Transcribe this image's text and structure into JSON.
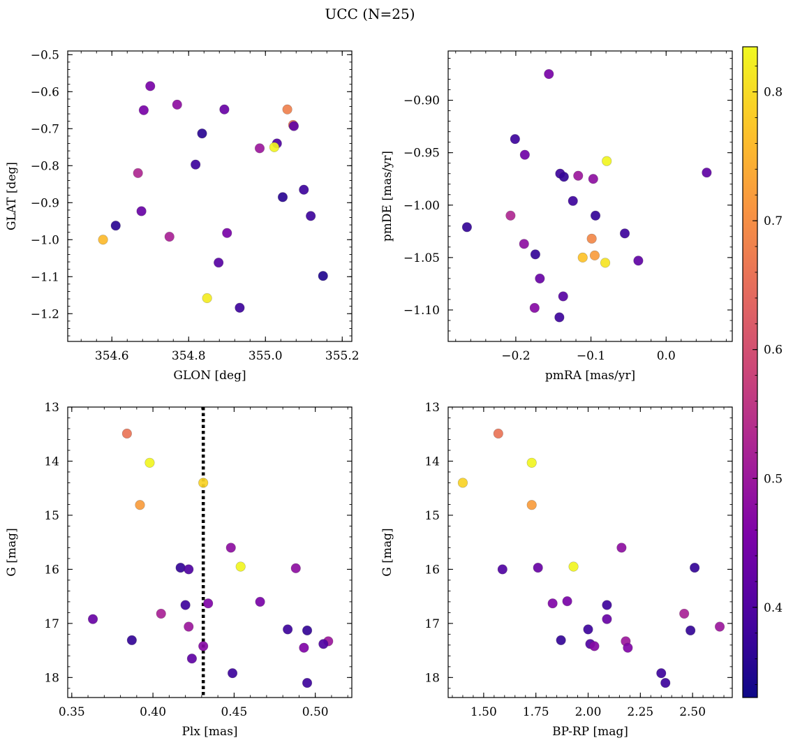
{
  "figure": {
    "title": "UCC (N=25)"
  },
  "colorbar": {
    "cmap": "plasma",
    "range": [
      0.33,
      0.835
    ],
    "ticks": [
      0.4,
      0.5,
      0.6,
      0.7,
      0.8
    ],
    "tick_labels": [
      "0.4",
      "0.5",
      "0.6",
      "0.7",
      "0.8"
    ]
  },
  "chart_data": [
    {
      "type": "scatter",
      "title": "",
      "xlabel": "GLON [deg]",
      "ylabel": "GLAT [deg]",
      "xlim": [
        354.485,
        355.225
      ],
      "ylim": [
        -1.275,
        -0.49
      ],
      "y_inverted": false,
      "xticks": [
        354.6,
        354.8,
        355.0,
        355.2
      ],
      "xtick_labels": [
        "354.6",
        "354.8",
        "355.0",
        "355.2"
      ],
      "yticks": [
        -1.2,
        -1.1,
        -1.0,
        -0.9,
        -0.8,
        -0.7,
        -0.6,
        -0.5
      ],
      "ytick_labels": [
        "−1.2",
        "−1.1",
        "−1.0",
        "−0.9",
        "−0.8",
        "−0.7",
        "−0.6",
        "−0.5"
      ],
      "vline": null,
      "points": [
        {
          "x": 354.7,
          "y": -0.585,
          "c": 0.45
        },
        {
          "x": 354.683,
          "y": -0.65,
          "c": 0.45
        },
        {
          "x": 354.77,
          "y": -0.635,
          "c": 0.48
        },
        {
          "x": 354.893,
          "y": -0.648,
          "c": 0.43
        },
        {
          "x": 355.057,
          "y": -0.648,
          "c": 0.68
        },
        {
          "x": 354.835,
          "y": -0.713,
          "c": 0.36
        },
        {
          "x": 355.072,
          "y": -0.69,
          "c": 0.66
        },
        {
          "x": 355.074,
          "y": -0.693,
          "c": 0.42
        },
        {
          "x": 355.03,
          "y": -0.74,
          "c": 0.4
        },
        {
          "x": 354.985,
          "y": -0.753,
          "c": 0.5
        },
        {
          "x": 355.023,
          "y": -0.75,
          "c": 0.83
        },
        {
          "x": 354.818,
          "y": -0.797,
          "c": 0.38
        },
        {
          "x": 354.668,
          "y": -0.82,
          "c": 0.53
        },
        {
          "x": 355.1,
          "y": -0.865,
          "c": 0.38
        },
        {
          "x": 355.045,
          "y": -0.885,
          "c": 0.36
        },
        {
          "x": 354.677,
          "y": -0.923,
          "c": 0.43
        },
        {
          "x": 355.118,
          "y": -0.936,
          "c": 0.38
        },
        {
          "x": 354.61,
          "y": -0.962,
          "c": 0.36
        },
        {
          "x": 354.9,
          "y": -0.982,
          "c": 0.45
        },
        {
          "x": 354.75,
          "y": -0.992,
          "c": 0.52
        },
        {
          "x": 354.577,
          "y": -1.0,
          "c": 0.76
        },
        {
          "x": 354.878,
          "y": -1.062,
          "c": 0.41
        },
        {
          "x": 355.15,
          "y": -1.098,
          "c": 0.35
        },
        {
          "x": 354.848,
          "y": -1.158,
          "c": 0.82
        },
        {
          "x": 354.933,
          "y": -1.184,
          "c": 0.38
        }
      ]
    },
    {
      "type": "scatter",
      "title": "",
      "xlabel": "pmRA [mas/yr]",
      "ylabel": "pmDE [mas/yr]",
      "xlim": [
        -0.29,
        0.088
      ],
      "ylim": [
        -1.13,
        -0.853
      ],
      "y_inverted": false,
      "xticks": [
        -0.2,
        -0.1,
        0.0
      ],
      "xtick_labels": [
        "−0.2",
        "−0.1",
        "0.0"
      ],
      "yticks": [
        -1.1,
        -1.05,
        -1.0,
        -0.95,
        -0.9
      ],
      "ytick_labels": [
        "−1.10",
        "−1.05",
        "−1.00",
        "−0.95",
        "−0.90"
      ],
      "vline": null,
      "points": [
        {
          "x": -0.156,
          "y": -0.875,
          "c": 0.45
        },
        {
          "x": -0.201,
          "y": -0.937,
          "c": 0.38
        },
        {
          "x": -0.188,
          "y": -0.952,
          "c": 0.44
        },
        {
          "x": -0.079,
          "y": -0.958,
          "c": 0.83
        },
        {
          "x": 0.054,
          "y": -0.969,
          "c": 0.42
        },
        {
          "x": -0.141,
          "y": -0.97,
          "c": 0.38
        },
        {
          "x": -0.136,
          "y": -0.973,
          "c": 0.37
        },
        {
          "x": -0.117,
          "y": -0.972,
          "c": 0.5
        },
        {
          "x": -0.097,
          "y": -0.975,
          "c": 0.48
        },
        {
          "x": -0.124,
          "y": -0.996,
          "c": 0.38
        },
        {
          "x": -0.094,
          "y": -1.01,
          "c": 0.37
        },
        {
          "x": -0.207,
          "y": -1.01,
          "c": 0.53
        },
        {
          "x": -0.265,
          "y": -1.021,
          "c": 0.37
        },
        {
          "x": -0.055,
          "y": -1.027,
          "c": 0.38
        },
        {
          "x": -0.099,
          "y": -1.032,
          "c": 0.69
        },
        {
          "x": -0.189,
          "y": -1.037,
          "c": 0.48
        },
        {
          "x": -0.174,
          "y": -1.047,
          "c": 0.37
        },
        {
          "x": -0.111,
          "y": -1.05,
          "c": 0.77
        },
        {
          "x": -0.095,
          "y": -1.048,
          "c": 0.72
        },
        {
          "x": -0.081,
          "y": -1.055,
          "c": 0.81
        },
        {
          "x": -0.037,
          "y": -1.053,
          "c": 0.42
        },
        {
          "x": -0.168,
          "y": -1.07,
          "c": 0.43
        },
        {
          "x": -0.137,
          "y": -1.087,
          "c": 0.41
        },
        {
          "x": -0.175,
          "y": -1.098,
          "c": 0.47
        },
        {
          "x": -0.142,
          "y": -1.107,
          "c": 0.38
        }
      ]
    },
    {
      "type": "scatter",
      "title": "",
      "xlabel": "Plx [mas]",
      "ylabel": "G [mag]",
      "xlim": [
        0.3475,
        0.5225
      ],
      "ylim": [
        18.37,
        13.0
      ],
      "y_inverted": true,
      "xticks": [
        0.35,
        0.4,
        0.45,
        0.5
      ],
      "xtick_labels": [
        "0.35",
        "0.40",
        "0.45",
        "0.50"
      ],
      "yticks": [
        13,
        14,
        15,
        16,
        17,
        18
      ],
      "ytick_labels": [
        "13",
        "14",
        "15",
        "16",
        "17",
        "18"
      ],
      "vline": {
        "x": 0.431,
        "style": "dotted"
      },
      "points": [
        {
          "x": 0.384,
          "y": 13.49,
          "c": 0.66
        },
        {
          "x": 0.398,
          "y": 14.03,
          "c": 0.83
        },
        {
          "x": 0.431,
          "y": 14.4,
          "c": 0.79
        },
        {
          "x": 0.392,
          "y": 14.81,
          "c": 0.72
        },
        {
          "x": 0.448,
          "y": 15.6,
          "c": 0.48
        },
        {
          "x": 0.454,
          "y": 15.95,
          "c": 0.83
        },
        {
          "x": 0.417,
          "y": 15.97,
          "c": 0.37
        },
        {
          "x": 0.422,
          "y": 16.0,
          "c": 0.4
        },
        {
          "x": 0.488,
          "y": 15.98,
          "c": 0.48
        },
        {
          "x": 0.434,
          "y": 16.63,
          "c": 0.46
        },
        {
          "x": 0.42,
          "y": 16.66,
          "c": 0.38
        },
        {
          "x": 0.466,
          "y": 16.6,
          "c": 0.45
        },
        {
          "x": 0.405,
          "y": 16.82,
          "c": 0.52
        },
        {
          "x": 0.363,
          "y": 16.92,
          "c": 0.43
        },
        {
          "x": 0.422,
          "y": 17.06,
          "c": 0.5
        },
        {
          "x": 0.483,
          "y": 17.11,
          "c": 0.38
        },
        {
          "x": 0.495,
          "y": 17.13,
          "c": 0.37
        },
        {
          "x": 0.387,
          "y": 17.31,
          "c": 0.37
        },
        {
          "x": 0.508,
          "y": 17.33,
          "c": 0.5
        },
        {
          "x": 0.505,
          "y": 17.38,
          "c": 0.4
        },
        {
          "x": 0.431,
          "y": 17.42,
          "c": 0.47
        },
        {
          "x": 0.493,
          "y": 17.45,
          "c": 0.46
        },
        {
          "x": 0.424,
          "y": 17.65,
          "c": 0.42
        },
        {
          "x": 0.449,
          "y": 17.92,
          "c": 0.38
        },
        {
          "x": 0.495,
          "y": 18.1,
          "c": 0.38
        }
      ]
    },
    {
      "type": "scatter",
      "title": "",
      "xlabel": "BP-RP [mag]",
      "ylabel": "G [mag]",
      "xlim": [
        1.33,
        2.69
      ],
      "ylim": [
        18.37,
        13.0
      ],
      "y_inverted": true,
      "xticks": [
        1.5,
        1.75,
        2.0,
        2.25,
        2.5
      ],
      "xtick_labels": [
        "1.50",
        "1.75",
        "2.00",
        "2.25",
        "2.50"
      ],
      "yticks": [
        13,
        14,
        15,
        16,
        17,
        18
      ],
      "ytick_labels": [
        "13",
        "14",
        "15",
        "16",
        "17",
        "18"
      ],
      "vline": null,
      "points": [
        {
          "x": 1.57,
          "y": 13.49,
          "c": 0.66
        },
        {
          "x": 1.73,
          "y": 14.03,
          "c": 0.83
        },
        {
          "x": 1.4,
          "y": 14.4,
          "c": 0.79
        },
        {
          "x": 1.73,
          "y": 14.81,
          "c": 0.72
        },
        {
          "x": 2.16,
          "y": 15.6,
          "c": 0.48
        },
        {
          "x": 1.93,
          "y": 15.95,
          "c": 0.83
        },
        {
          "x": 1.59,
          "y": 16.0,
          "c": 0.4
        },
        {
          "x": 1.76,
          "y": 15.97,
          "c": 0.43
        },
        {
          "x": 2.51,
          "y": 15.97,
          "c": 0.37
        },
        {
          "x": 1.83,
          "y": 16.63,
          "c": 0.46
        },
        {
          "x": 1.9,
          "y": 16.59,
          "c": 0.45
        },
        {
          "x": 2.09,
          "y": 16.66,
          "c": 0.38
        },
        {
          "x": 2.46,
          "y": 16.82,
          "c": 0.52
        },
        {
          "x": 2.09,
          "y": 16.92,
          "c": 0.43
        },
        {
          "x": 2.63,
          "y": 17.06,
          "c": 0.5
        },
        {
          "x": 2.0,
          "y": 17.11,
          "c": 0.38
        },
        {
          "x": 2.49,
          "y": 17.13,
          "c": 0.37
        },
        {
          "x": 1.87,
          "y": 17.31,
          "c": 0.37
        },
        {
          "x": 2.18,
          "y": 17.33,
          "c": 0.5
        },
        {
          "x": 2.01,
          "y": 17.38,
          "c": 0.4
        },
        {
          "x": 2.03,
          "y": 17.42,
          "c": 0.47
        },
        {
          "x": 2.19,
          "y": 17.45,
          "c": 0.46
        },
        {
          "x": 2.35,
          "y": 17.92,
          "c": 0.38
        },
        {
          "x": 2.37,
          "y": 18.1,
          "c": 0.38
        }
      ]
    }
  ]
}
